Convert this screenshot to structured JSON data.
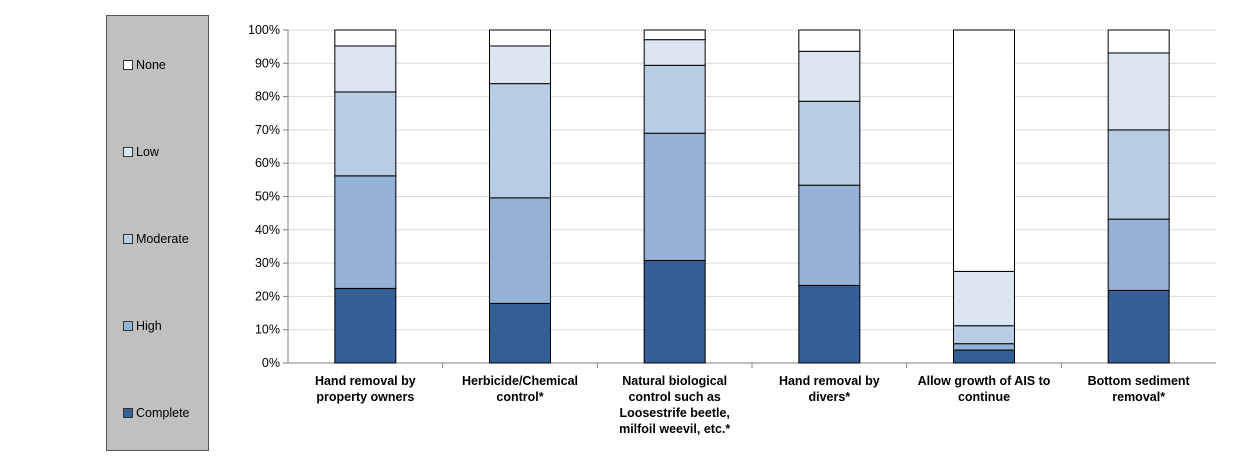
{
  "chart_data": {
    "type": "bar",
    "stacked": true,
    "categories": [
      "Hand removal by property owners",
      "Herbicide/Chemical control*",
      "Natural biological control such as Loosestrife beetle, milfoil weevil, etc.*",
      "Hand removal by divers*",
      "Allow growth of AIS to continue",
      "Bottom sediment removal*"
    ],
    "category_lines": [
      [
        "Hand removal by",
        "property owners"
      ],
      [
        "Herbicide/Chemical",
        "control*"
      ],
      [
        "Natural biological",
        "control such as",
        "Loosestrife beetle,",
        "milfoil weevil, etc.*"
      ],
      [
        "Hand removal by",
        "divers*"
      ],
      [
        "Allow growth of AIS to",
        "continue"
      ],
      [
        "Bottom sediment",
        "removal*"
      ]
    ],
    "series": [
      {
        "name": "Complete",
        "values": [
          22.4,
          17.9,
          30.8,
          23.3,
          3.9,
          21.8
        ]
      },
      {
        "name": "High",
        "values": [
          33.8,
          31.7,
          38.2,
          30.1,
          1.9,
          21.4
        ]
      },
      {
        "name": "Moderate",
        "values": [
          25.2,
          34.3,
          20.4,
          25.2,
          5.4,
          26.8
        ]
      },
      {
        "name": "Low",
        "values": [
          13.8,
          11.3,
          7.7,
          15.0,
          16.3,
          23.1
        ]
      },
      {
        "name": "None",
        "values": [
          4.8,
          4.8,
          2.9,
          6.4,
          72.5,
          6.9
        ]
      }
    ],
    "legend_order": [
      "None",
      "Low",
      "Moderate",
      "High",
      "Complete"
    ],
    "colors": {
      "Complete": "#345e94",
      "High": "#94b1d6",
      "Moderate": "#b8cce4",
      "Low": "#dce6f2",
      "None": "#ffffff"
    },
    "ylim": [
      0,
      100
    ],
    "yticks": [
      "0%",
      "10%",
      "20%",
      "30%",
      "40%",
      "50%",
      "60%",
      "70%",
      "80%",
      "90%",
      "100%"
    ],
    "grid": true,
    "legend_position": "left"
  }
}
